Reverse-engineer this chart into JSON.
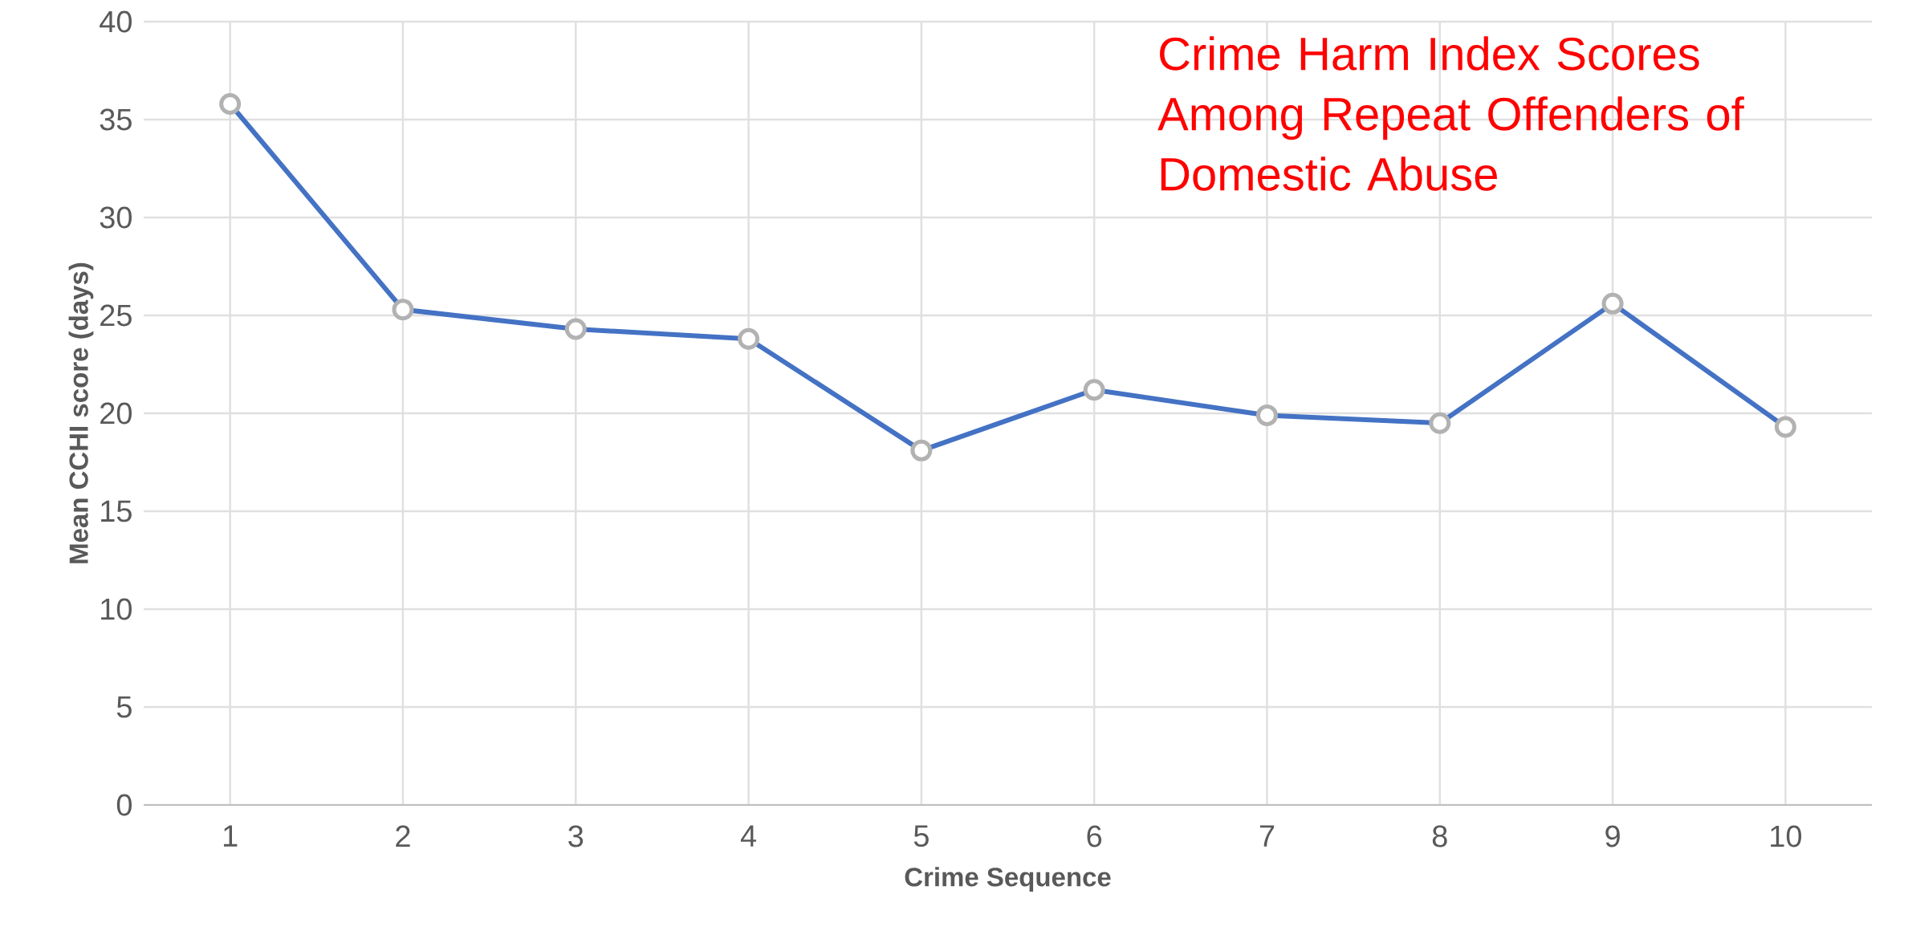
{
  "chart_data": {
    "type": "line",
    "title": "Crime Harm Index Scores Among Repeat Offenders of Domestic Abuse",
    "xlabel": "Crime Sequence",
    "ylabel": "Mean CCHI score (days)",
    "categories": [
      "1",
      "2",
      "3",
      "4",
      "5",
      "6",
      "7",
      "8",
      "9",
      "10"
    ],
    "series": [
      {
        "color": "#4472c4",
        "values": [
          35.8,
          25.3,
          24.3,
          23.8,
          18.1,
          21.2,
          19.9,
          19.5,
          25.6,
          19.3
        ]
      }
    ],
    "ylim": [
      0,
      40
    ],
    "yticks": [
      0,
      5,
      10,
      15,
      20,
      25,
      30,
      35,
      40
    ],
    "grid": true,
    "marker": "circle",
    "line_style": "solid"
  }
}
